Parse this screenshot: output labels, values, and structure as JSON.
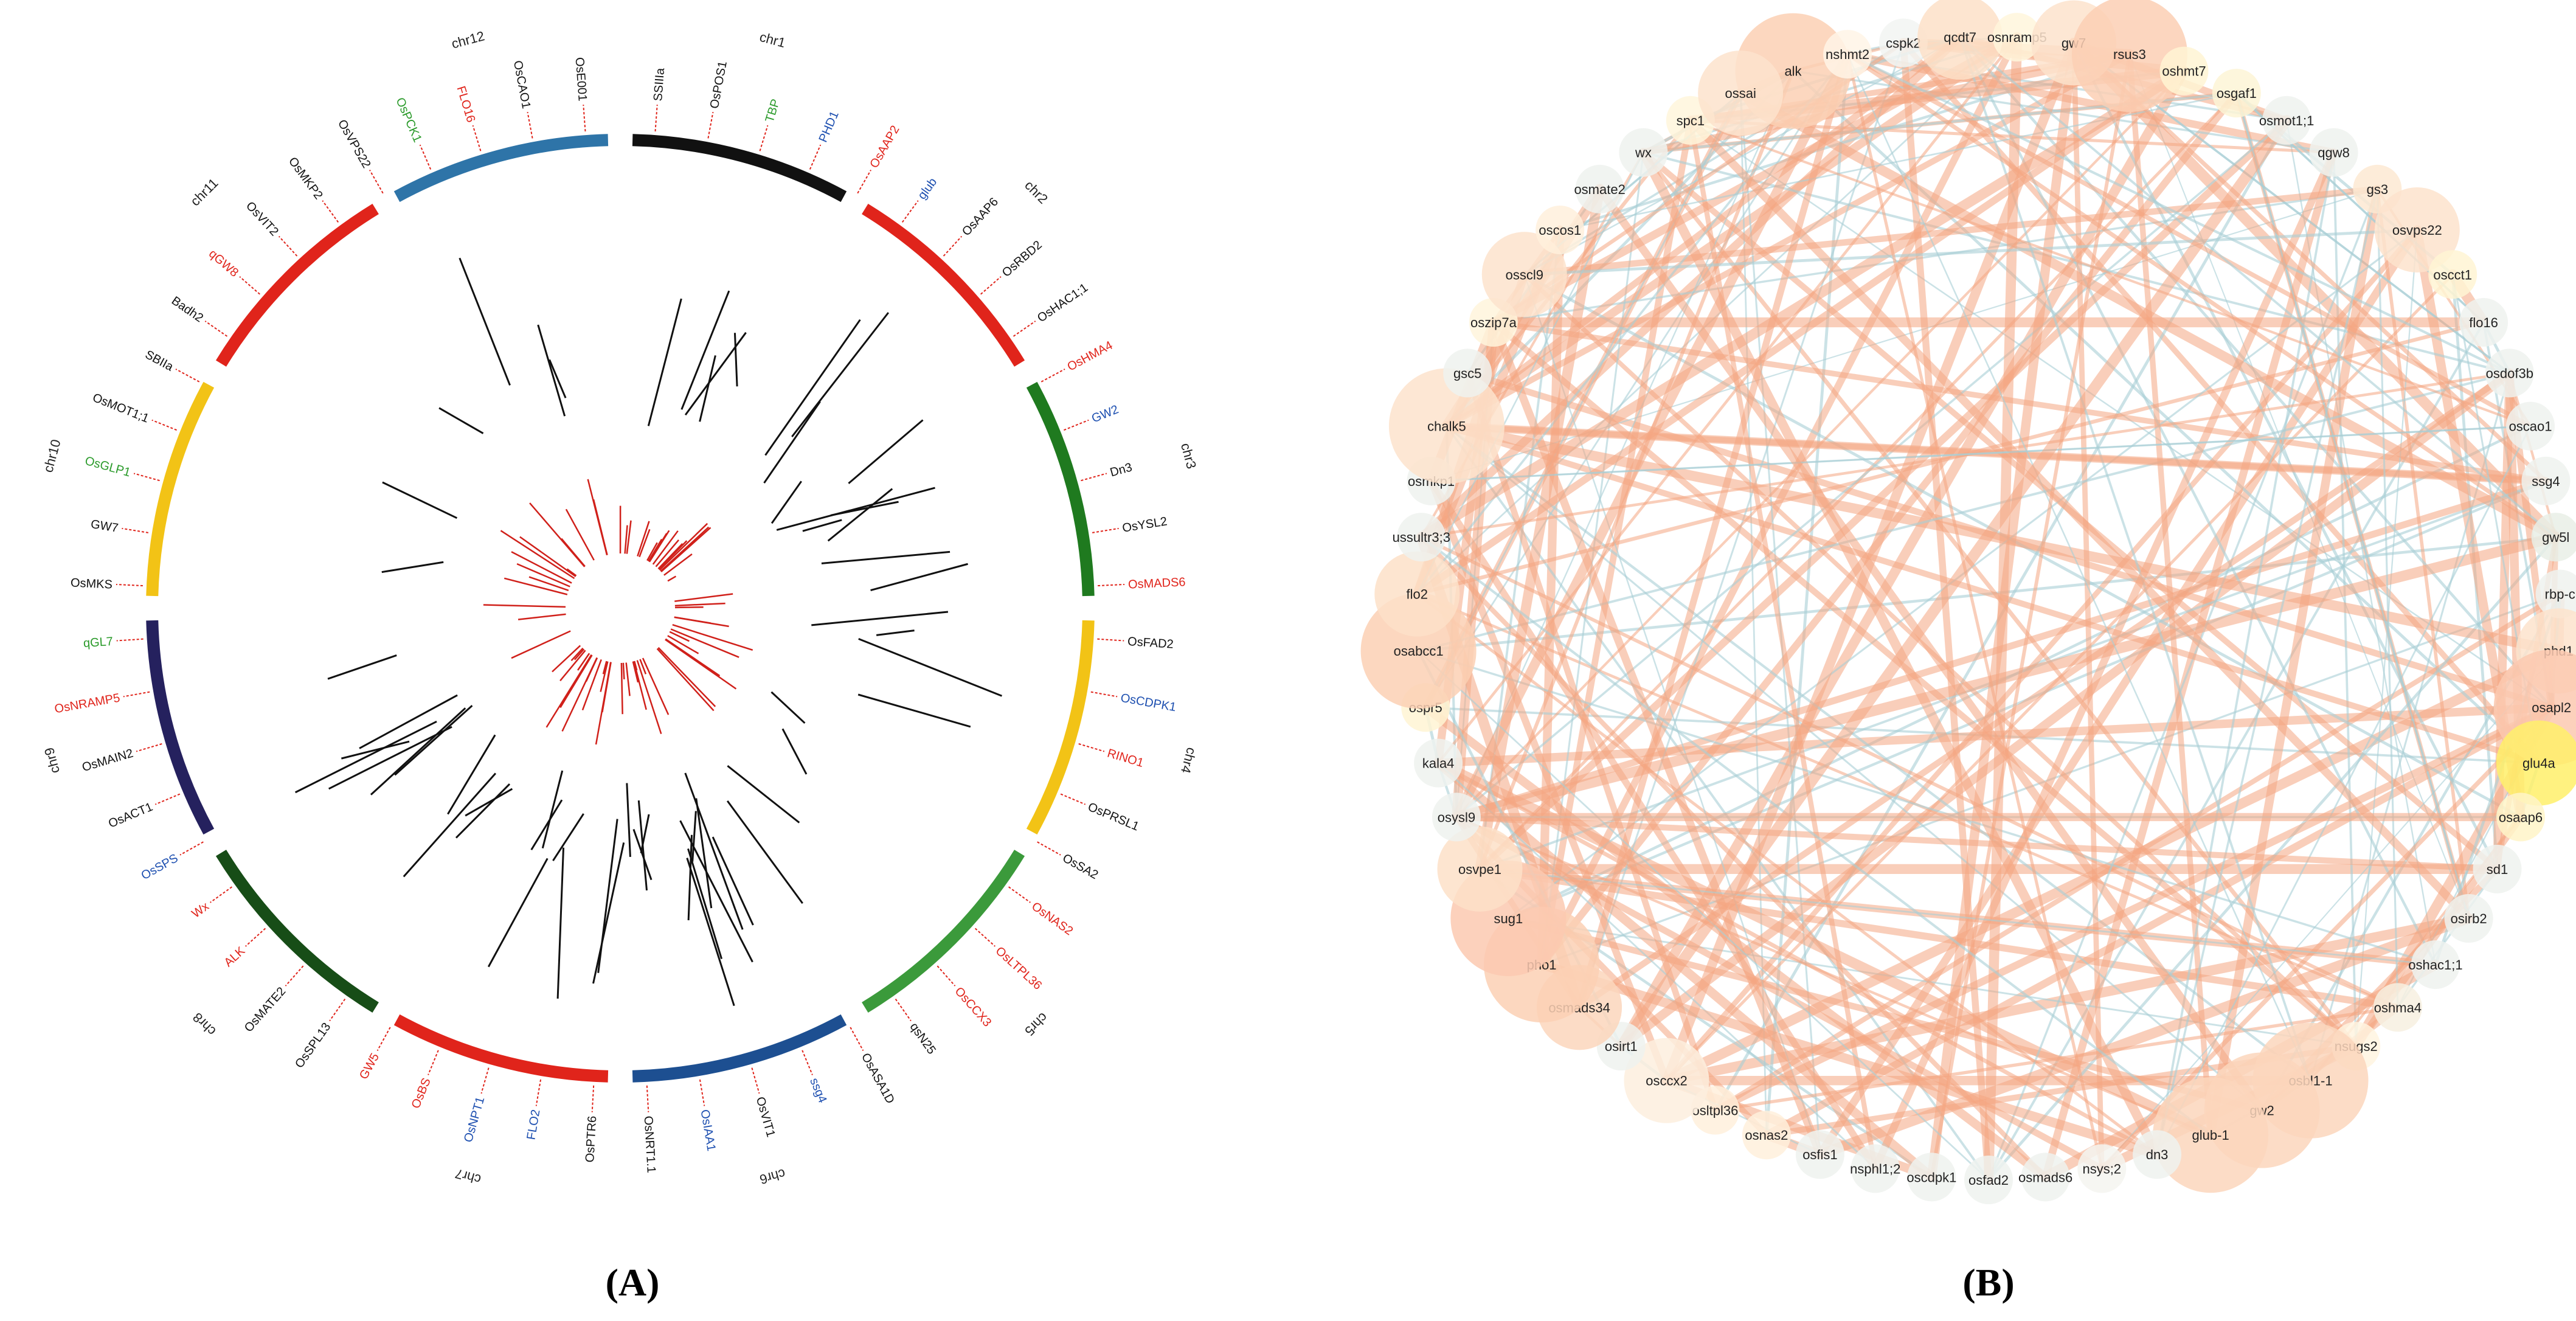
{
  "panel_a": {
    "label": "(A)",
    "chromosomes": [
      {
        "name": "chr1",
        "color": "#111111"
      },
      {
        "name": "chr2",
        "color": "#e0241b"
      },
      {
        "name": "chr3",
        "color": "#1f7a1f"
      },
      {
        "name": "chr4",
        "color": "#f2c316"
      },
      {
        "name": "chr5",
        "color": "#3b9a3b"
      },
      {
        "name": "chr6",
        "color": "#1d4f91"
      },
      {
        "name": "chr7",
        "color": "#e0241b"
      },
      {
        "name": "chr8",
        "color": "#174d17"
      },
      {
        "name": "chr9",
        "color": "#25215e"
      },
      {
        "name": "chr10",
        "color": "#f2c316"
      },
      {
        "name": "chr11",
        "color": "#e0241b"
      },
      {
        "name": "chr12",
        "color": "#2e74a8"
      }
    ],
    "genes": [
      {
        "name": "SSIIIa",
        "color": "#111111"
      },
      {
        "name": "OsPOS1",
        "color": "#111111"
      },
      {
        "name": "TBP",
        "color": "#2a9a2a"
      },
      {
        "name": "PHD1",
        "color": "#1d4fb0"
      },
      {
        "name": "OsAAP2",
        "color": "#e0241b"
      },
      {
        "name": "glub",
        "color": "#1d4fb0"
      },
      {
        "name": "OsAAP6",
        "color": "#111111"
      },
      {
        "name": "OsRBD2",
        "color": "#111111"
      },
      {
        "name": "OsHAC1;1",
        "color": "#111111"
      },
      {
        "name": "OsHMA4",
        "color": "#e0241b"
      },
      {
        "name": "GW2",
        "color": "#1d4fb0"
      },
      {
        "name": "Dn3",
        "color": "#111111"
      },
      {
        "name": "OsYSL2",
        "color": "#111111"
      },
      {
        "name": "OsMADS6",
        "color": "#e0241b"
      },
      {
        "name": "OsFAD2",
        "color": "#111111"
      },
      {
        "name": "OsCDPK1",
        "color": "#1d4fb0"
      },
      {
        "name": "RINO1",
        "color": "#e0241b"
      },
      {
        "name": "OsPRSL1",
        "color": "#111111"
      },
      {
        "name": "OsSA2",
        "color": "#111111"
      },
      {
        "name": "OsNAS2",
        "color": "#e0241b"
      },
      {
        "name": "OsLTPL36",
        "color": "#e0241b"
      },
      {
        "name": "OsCCX3",
        "color": "#e0241b"
      },
      {
        "name": "qsN25",
        "color": "#111111"
      },
      {
        "name": "OsASA1D",
        "color": "#111111"
      },
      {
        "name": "ssg4",
        "color": "#1d4fb0"
      },
      {
        "name": "OsVIT1",
        "color": "#111111"
      },
      {
        "name": "OsIAA1",
        "color": "#1d4fb0"
      },
      {
        "name": "OsNRT1.1",
        "color": "#111111"
      },
      {
        "name": "OsPTR6",
        "color": "#111111"
      },
      {
        "name": "FLO2",
        "color": "#1d4fb0"
      },
      {
        "name": "OsNPT1",
        "color": "#1d4fb0"
      },
      {
        "name": "OsBS",
        "color": "#e0241b"
      },
      {
        "name": "GW5",
        "color": "#e0241b"
      },
      {
        "name": "OsSPL13",
        "color": "#111111"
      },
      {
        "name": "OsMATE2",
        "color": "#111111"
      },
      {
        "name": "ALK",
        "color": "#e0241b"
      },
      {
        "name": "Wx",
        "color": "#e0241b"
      },
      {
        "name": "OsSPS",
        "color": "#1d4fb0"
      },
      {
        "name": "OsACT1",
        "color": "#111111"
      },
      {
        "name": "OsMAIN2",
        "color": "#111111"
      },
      {
        "name": "OsNRAMP5",
        "color": "#e0241b"
      },
      {
        "name": "qGL7",
        "color": "#2a9a2a"
      },
      {
        "name": "OsMKS",
        "color": "#111111"
      },
      {
        "name": "GW7",
        "color": "#111111"
      },
      {
        "name": "OsGLP1",
        "color": "#2a9a2a"
      },
      {
        "name": "OsMOT1;1",
        "color": "#111111"
      },
      {
        "name": "SBIIa",
        "color": "#111111"
      },
      {
        "name": "Badh2",
        "color": "#111111"
      },
      {
        "name": "qGW8",
        "color": "#e0241b"
      },
      {
        "name": "OsVIT2",
        "color": "#111111"
      },
      {
        "name": "OsMKP2",
        "color": "#111111"
      },
      {
        "name": "OsVPS22",
        "color": "#111111"
      },
      {
        "name": "OsPCK1",
        "color": "#2a9a2a"
      },
      {
        "name": "FLO16",
        "color": "#e0241b"
      },
      {
        "name": "OsCAO1",
        "color": "#111111"
      },
      {
        "name": "OsE001",
        "color": "#111111"
      }
    ]
  },
  "panel_b": {
    "label": "(B)",
    "nodes": [
      {
        "name": "alk",
        "fill": "#fbd0b4"
      },
      {
        "name": "nshmt2",
        "fill": "#fff5e6"
      },
      {
        "name": "cspk2",
        "fill": "#f2f5f2"
      },
      {
        "name": "qcdt7",
        "fill": "#fde0c8"
      },
      {
        "name": "osnramp5",
        "fill": "#fff6dc"
      },
      {
        "name": "gw7",
        "fill": "#fde3cc"
      },
      {
        "name": "rsus3",
        "fill": "#fbcfb4"
      },
      {
        "name": "oshmt7",
        "fill": "#fff4d4"
      },
      {
        "name": "osgaf1",
        "fill": "#fdf4d6"
      },
      {
        "name": "osmot1;1",
        "fill": "#eef2ee"
      },
      {
        "name": "qgw8",
        "fill": "#eef2ee"
      },
      {
        "name": "gs3",
        "fill": "#fde9d2"
      },
      {
        "name": "osvps22",
        "fill": "#fde3cc"
      },
      {
        "name": "oscct1",
        "fill": "#fff4d4"
      },
      {
        "name": "flo16",
        "fill": "#eef2ee"
      },
      {
        "name": "osdof3b",
        "fill": "#eef2ee"
      },
      {
        "name": "oscao1",
        "fill": "#eef2ee"
      },
      {
        "name": "ssg4",
        "fill": "#eef2ee"
      },
      {
        "name": "gw5l",
        "fill": "#e9efe6"
      },
      {
        "name": "rbp-c",
        "fill": "#eef2ee"
      },
      {
        "name": "phd1",
        "fill": "#fde3cc"
      },
      {
        "name": "osapl2",
        "fill": "#fbc9b0"
      },
      {
        "name": "glu4a",
        "fill": "#fff06a"
      },
      {
        "name": "osaap6",
        "fill": "#fff4c8"
      },
      {
        "name": "sd1",
        "fill": "#eef2ee"
      },
      {
        "name": "osirb2",
        "fill": "#eef2ee"
      },
      {
        "name": "oshac1;1",
        "fill": "#eef2ee"
      },
      {
        "name": "oshma4",
        "fill": "#f7f0e0"
      },
      {
        "name": "nsugs2",
        "fill": "#fff4e0"
      },
      {
        "name": "osbl1-1",
        "fill": "#fbd6bc"
      },
      {
        "name": "gw2",
        "fill": "#fbd6bc"
      },
      {
        "name": "glub-1",
        "fill": "#fbd6bc"
      },
      {
        "name": "dn3",
        "fill": "#eef2ee"
      },
      {
        "name": "nsys;2",
        "fill": "#f5f5f0"
      },
      {
        "name": "osmads6",
        "fill": "#eef2ee"
      },
      {
        "name": "osfad2",
        "fill": "#eef2ee"
      },
      {
        "name": "oscdpk1",
        "fill": "#eef2ee"
      },
      {
        "name": "nsphl1;2",
        "fill": "#eef2ee"
      },
      {
        "name": "osfis1",
        "fill": "#eef2ee"
      },
      {
        "name": "osnas2",
        "fill": "#fff0dc"
      },
      {
        "name": "osltpl36",
        "fill": "#fff0dc"
      },
      {
        "name": "osccx2",
        "fill": "#fdeede"
      },
      {
        "name": "osirt1",
        "fill": "#eef2ee"
      },
      {
        "name": "osmads34",
        "fill": "#fbd6bc"
      },
      {
        "name": "pho1",
        "fill": "#fbd0b4"
      },
      {
        "name": "sug1",
        "fill": "#fbc9b0"
      },
      {
        "name": "osvpe1",
        "fill": "#fde0c8"
      },
      {
        "name": "osysl9",
        "fill": "#eef2ee"
      },
      {
        "name": "kala4",
        "fill": "#eef2ee"
      },
      {
        "name": "ospr5",
        "fill": "#fff4d4"
      },
      {
        "name": "osabcc1",
        "fill": "#fbd0b4"
      },
      {
        "name": "flo2",
        "fill": "#fde0c8"
      },
      {
        "name": "ussultr3;3",
        "fill": "#eef2ee"
      },
      {
        "name": "osmkp1",
        "fill": "#eef2ee"
      },
      {
        "name": "chalk5",
        "fill": "#fde3cc"
      },
      {
        "name": "gsc5",
        "fill": "#eef2ee"
      },
      {
        "name": "oszip7a",
        "fill": "#fff4dc"
      },
      {
        "name": "osscl9",
        "fill": "#fde3cc"
      },
      {
        "name": "oscos1",
        "fill": "#fff0dc"
      },
      {
        "name": "osmate2",
        "fill": "#eef2ee"
      },
      {
        "name": "wx",
        "fill": "#eef2ee"
      },
      {
        "name": "spc1",
        "fill": "#fff6dc"
      },
      {
        "name": "ossai",
        "fill": "#fde3cc"
      }
    ]
  }
}
